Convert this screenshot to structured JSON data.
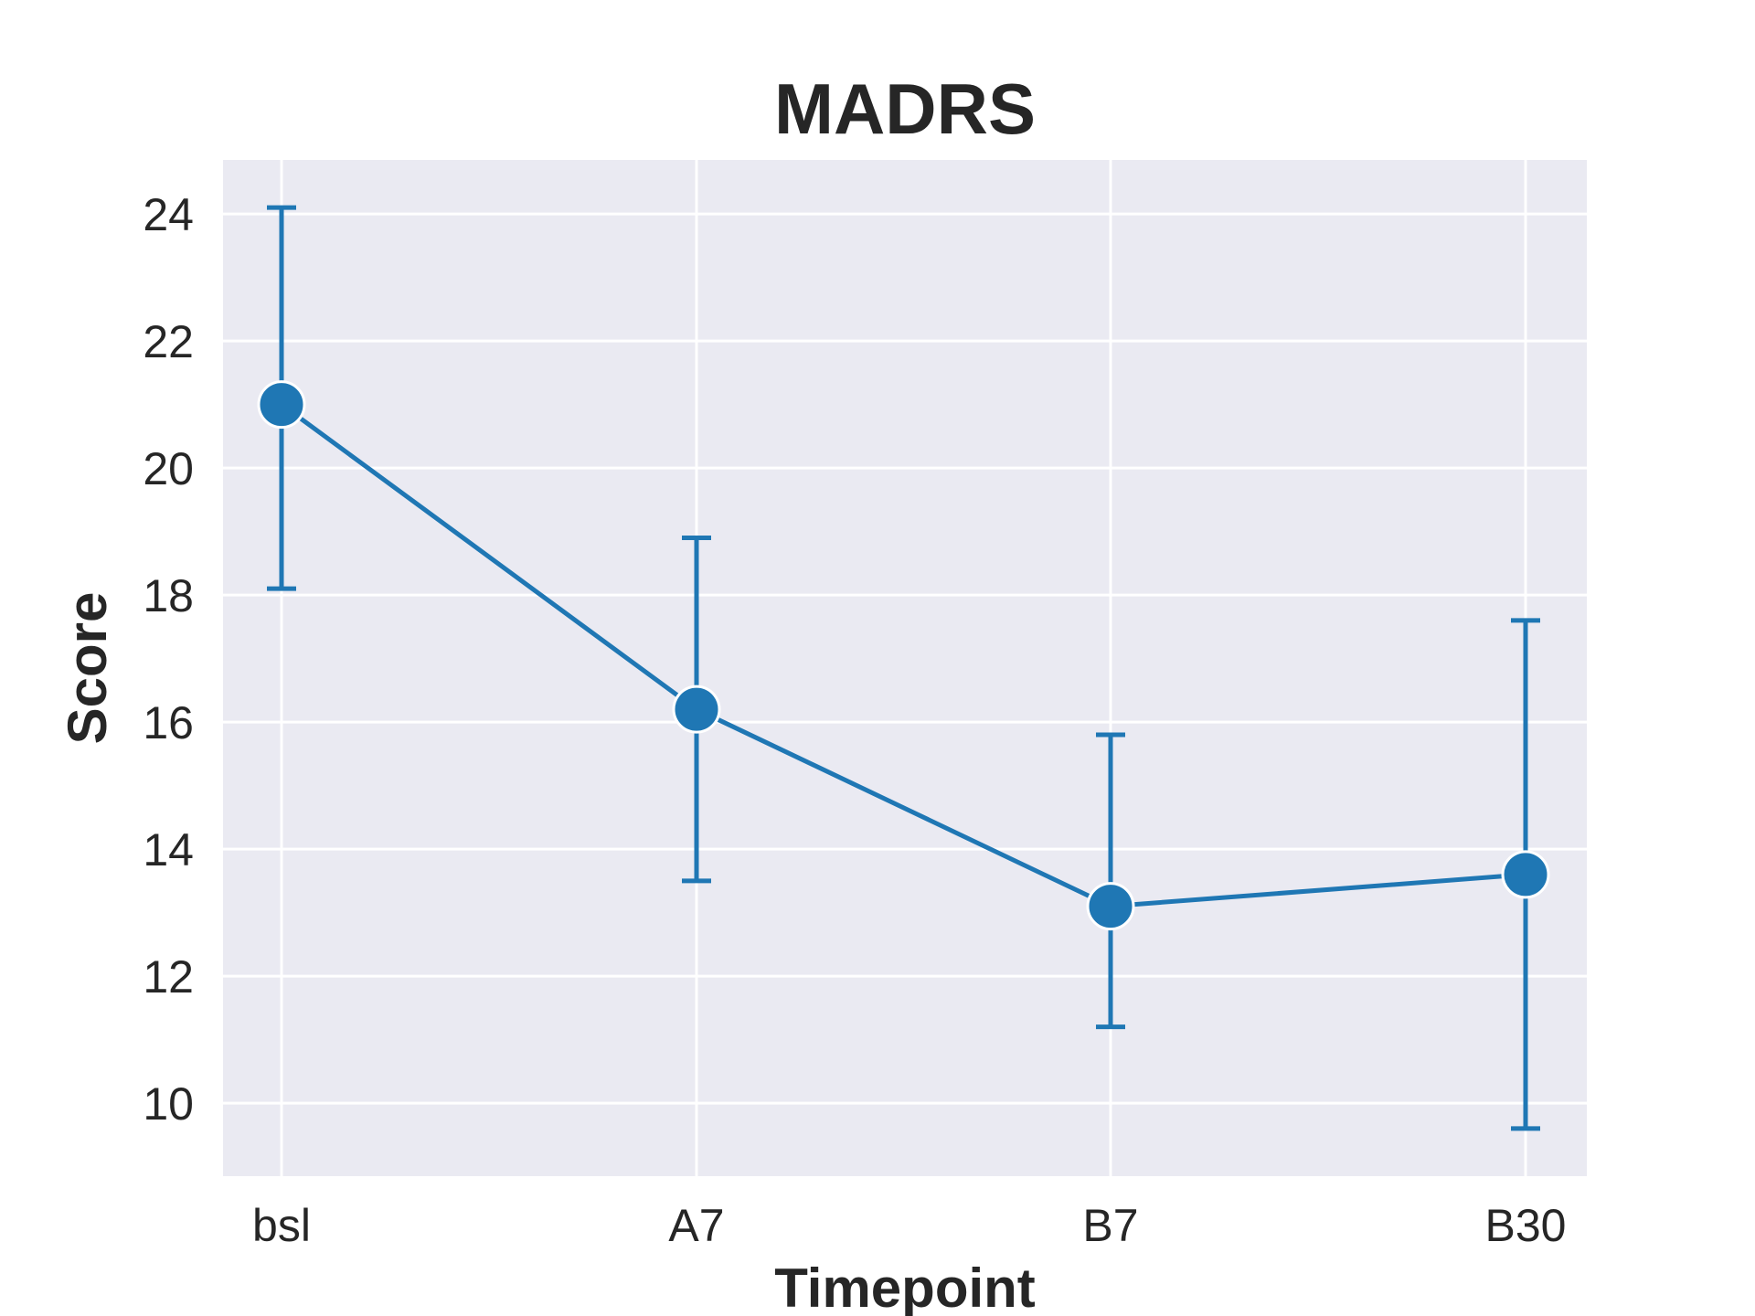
{
  "chart_data": {
    "type": "line",
    "title": "MADRS",
    "xlabel": "Timepoint",
    "ylabel": "Score",
    "categories": [
      "bsl",
      "A7",
      "B7",
      "B30"
    ],
    "values": [
      21.0,
      16.2,
      13.1,
      13.6
    ],
    "error_low": [
      18.1,
      13.5,
      11.2,
      9.6
    ],
    "error_high": [
      24.1,
      18.9,
      15.8,
      17.6
    ],
    "yticks": [
      10,
      12,
      14,
      16,
      18,
      20,
      22,
      24
    ],
    "ylim": [
      8.85,
      24.85
    ],
    "grid": true,
    "colors": {
      "series": "#1f77b4",
      "plot_background": "#eaeaf2",
      "grid": "#ffffff",
      "text": "#262626"
    }
  }
}
